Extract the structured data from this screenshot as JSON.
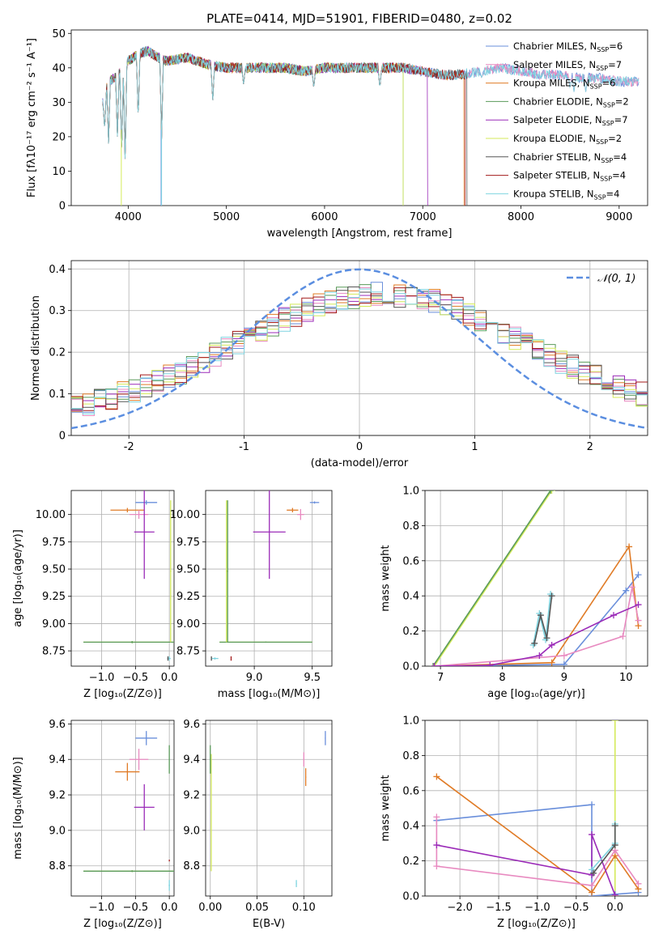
{
  "figure": {
    "title": "PLATE=0414, MJD=51901, FIBERID=0480, z=0.02"
  },
  "colors": {
    "Chabrier MILES": "#6a8fdb",
    "Salpeter MILES": "#e88ac0",
    "Kroupa MILES": "#e07b26",
    "Chabrier ELODIE": "#5a9a5a",
    "Salpeter ELODIE": "#9b2bb8",
    "Kroupa ELODIE": "#d4ea5a",
    "Chabrier STELIB": "#555555",
    "Salpeter STELIB": "#a31a1a",
    "Kroupa STELIB": "#7fd4e0",
    "gauss": "#5b8ee0"
  },
  "chart_data": [
    {
      "id": "spectrum",
      "type": "line",
      "title": "PLATE=0414, MJD=51901, FIBERID=0480, z=0.02",
      "xlabel": "wavelength [Angstrom, rest frame]",
      "ylabel": "Flux [fλ10⁻¹⁷ erg cm⁻² s⁻¹ A⁻¹]",
      "xlim": [
        3420,
        9290
      ],
      "ylim": [
        0,
        51
      ],
      "xticks": [
        4000,
        5000,
        6000,
        7000,
        8000,
        9000
      ],
      "yticks": [
        0,
        10,
        20,
        30,
        40,
        50
      ],
      "legend_position": "top-right",
      "legend": [
        {
          "label": "Chabrier MILES, N",
          "sub": "SSP",
          "suffix": "=6",
          "model": "Chabrier MILES"
        },
        {
          "label": "Salpeter MILES, N",
          "sub": "SSP",
          "suffix": "=7",
          "model": "Salpeter MILES"
        },
        {
          "label": "Kroupa MILES, N",
          "sub": "SSP",
          "suffix": "=6",
          "model": "Kroupa MILES"
        },
        {
          "label": "Chabrier ELODIE, N",
          "sub": "SSP",
          "suffix": "=2",
          "model": "Chabrier ELODIE"
        },
        {
          "label": "Salpeter ELODIE, N",
          "sub": "SSP",
          "suffix": "=7",
          "model": "Salpeter ELODIE"
        },
        {
          "label": "Kroupa ELODIE, N",
          "sub": "SSP",
          "suffix": "=2",
          "model": "Kroupa ELODIE"
        },
        {
          "label": "Chabrier STELIB, N",
          "sub": "SSP",
          "suffix": "=4",
          "model": "Chabrier STELIB"
        },
        {
          "label": "Salpeter STELIB, N",
          "sub": "SSP",
          "suffix": "=4",
          "model": "Salpeter STELIB"
        },
        {
          "label": "Kroupa STELIB, N",
          "sub": "SSP",
          "suffix": "=4",
          "model": "Kroupa STELIB"
        }
      ],
      "continuum": {
        "x": [
          3740,
          3800,
          3900,
          4000,
          4100,
          4200,
          4300,
          4400,
          4600,
          4800,
          5000,
          5200,
          5400,
          5600,
          5800,
          6000,
          6200,
          6400,
          6600,
          6800,
          7000,
          7200,
          7400,
          7600,
          7800,
          8000,
          8200,
          8400,
          8600,
          8800,
          9000,
          9200
        ],
        "y": [
          30,
          36,
          38,
          42,
          44,
          45,
          43,
          42,
          43,
          41,
          40,
          40,
          40,
          40,
          39,
          40,
          40,
          40,
          40,
          40,
          39,
          38,
          38,
          39,
          40,
          39,
          38,
          38,
          37,
          37,
          36,
          36
        ]
      },
      "dips": [
        {
          "x": 3760,
          "y": 22
        },
        {
          "x": 3800,
          "y": 18
        },
        {
          "x": 3890,
          "y": 20
        },
        {
          "x": 3934,
          "y": 14
        },
        {
          "x": 3969,
          "y": 12
        },
        {
          "x": 4102,
          "y": 25
        },
        {
          "x": 4340,
          "y": 19
        },
        {
          "x": 4861,
          "y": 30
        },
        {
          "x": 5175,
          "y": 35
        },
        {
          "x": 5890,
          "y": 34
        },
        {
          "x": 6563,
          "y": 34
        },
        {
          "x": 7600,
          "y": 37
        },
        {
          "x": 8500,
          "y": 34
        },
        {
          "x": 8540,
          "y": 33
        },
        {
          "x": 8660,
          "y": 33
        }
      ],
      "model_ends": [
        {
          "model": "Kroupa ELODIE",
          "x_end": 6800
        },
        {
          "model": "Salpeter STELIB",
          "x_end": 7430
        },
        {
          "model": "Kroupa MILES",
          "x_end": 7420
        },
        {
          "model": "Salpeter ELODIE",
          "x_end": 7050
        },
        {
          "model": "Chabrier ELODIE",
          "x_end": 6800
        },
        {
          "model": "Chabrier STELIB",
          "x_end": 7450
        }
      ]
    },
    {
      "id": "residuals",
      "type": "line",
      "xlabel": "(data-model)/error",
      "ylabel": "Normed distribution",
      "xlim": [
        -2.5,
        2.5
      ],
      "ylim": [
        0,
        0.42
      ],
      "xticks": [
        -2,
        -1,
        0,
        1,
        2
      ],
      "yticks": [
        0.0,
        0.1,
        0.2,
        0.3,
        0.4
      ],
      "legend_position": "top-right",
      "gauss_label": "𝒩(0, 1)",
      "bin_width": 0.1
    },
    {
      "id": "age-vs-Z",
      "type": "scatter",
      "xlabel": "Z [log₁₀(Z/Z⊙)]",
      "ylabel": "age  [log₁₀(age/yr)]",
      "xlim": [
        -1.45,
        0.07
      ],
      "ylim": [
        8.61,
        10.22
      ],
      "xticks": [
        -1.0,
        -0.5,
        0.0
      ],
      "xticklabels": [
        "−1.0",
        "−0.5",
        "0.0"
      ],
      "yticks": [
        8.75,
        9.0,
        9.25,
        9.5,
        9.75,
        10.0
      ],
      "yticklabels": [
        "8.75",
        "9.00",
        "9.25",
        "9.50",
        "9.75",
        "10.00"
      ],
      "points": [
        {
          "model": "Chabrier MILES",
          "x": -0.34,
          "xerr": 0.16,
          "y": 10.11,
          "yerr": 0.02
        },
        {
          "model": "Kroupa MILES",
          "x": -0.62,
          "xerr": 0.25,
          "y": 10.04,
          "yerr": 0.02
        },
        {
          "model": "Salpeter MILES",
          "x": -0.45,
          "xerr": 0.14,
          "y": 10.0,
          "yerr": 0.04
        },
        {
          "model": "Salpeter ELODIE",
          "x": -0.37,
          "xerr": 0.15,
          "y": 9.84,
          "yerr": 0.43
        },
        {
          "model": "Kroupa ELODIE",
          "x": -0.55,
          "xerr": 0.72,
          "y": 8.83,
          "yerr": 0.01
        },
        {
          "model": "Chabrier ELODIE",
          "x": -0.55,
          "xerr": 0.72,
          "y": 8.83,
          "yerr": 0.01
        },
        {
          "model": "Kroupa ELODIE",
          "x": 0.02,
          "xerr": 0.01,
          "y": 9.48,
          "yerr": 0.65
        },
        {
          "model": "Kroupa STELIB",
          "x": 0.0,
          "xerr": 0.02,
          "y": 8.68,
          "yerr": 0.02
        },
        {
          "model": "Chabrier STELIB",
          "x": -0.02,
          "xerr": 0.01,
          "y": 8.68,
          "yerr": 0.02
        }
      ]
    },
    {
      "id": "age-vs-mass",
      "type": "scatter",
      "xlabel": "mass [log₁₀(M/M⊙)]",
      "ylabel": "",
      "xlim": [
        8.58,
        9.67
      ],
      "ylim": [
        8.61,
        10.22
      ],
      "xticks": [
        9.0,
        9.5
      ],
      "xticklabels": [
        "9.0",
        "9.5"
      ],
      "yticks": [
        8.75,
        9.0,
        9.25,
        9.5,
        9.75,
        10.0
      ],
      "yticklabels": [
        "8.75",
        "9.00",
        "9.25",
        "9.50",
        "9.75",
        "10.00"
      ],
      "points": [
        {
          "model": "Chabrier MILES",
          "x": 9.52,
          "xerr": 0.04,
          "y": 10.11,
          "yerr": 0.01
        },
        {
          "model": "Kroupa MILES",
          "x": 9.33,
          "xerr": 0.05,
          "y": 10.04,
          "yerr": 0.02
        },
        {
          "model": "Salpeter MILES",
          "x": 9.4,
          "xerr": 0.03,
          "y": 10.0,
          "yerr": 0.05
        },
        {
          "model": "Salpeter ELODIE",
          "x": 9.13,
          "xerr": 0.14,
          "y": 9.84,
          "yerr": 0.43
        },
        {
          "model": "Kroupa ELODIE",
          "x": 9.1,
          "xerr": 0.4,
          "y": 8.83,
          "yerr": 0.005
        },
        {
          "model": "Chabrier ELODIE",
          "x": 9.1,
          "xerr": 0.4,
          "y": 8.83,
          "yerr": 0.005
        },
        {
          "model": "Kroupa ELODIE",
          "x": 8.76,
          "xerr": 0.005,
          "y": 9.48,
          "yerr": 0.65
        },
        {
          "model": "Chabrier ELODIE",
          "x": 8.77,
          "xerr": 0.005,
          "y": 9.48,
          "yerr": 0.65
        },
        {
          "model": "Kroupa STELIB",
          "x": 8.66,
          "xerr": 0.03,
          "y": 8.68,
          "yerr": 0.01
        },
        {
          "model": "Salpeter STELIB",
          "x": 8.8,
          "xerr": 0.003,
          "y": 8.68,
          "yerr": 0.02
        },
        {
          "model": "Chabrier STELIB",
          "x": 8.63,
          "xerr": 0.003,
          "y": 8.68,
          "yerr": 0.02
        }
      ]
    },
    {
      "id": "weight-vs-age",
      "type": "line",
      "xlabel": "age  [log₁₀(age/yr)]",
      "ylabel": "mass weight",
      "xlim": [
        6.75,
        10.35
      ],
      "ylim": [
        0,
        1.0
      ],
      "xticks": [
        7,
        8,
        9,
        10
      ],
      "xticklabels": [
        "7",
        "8",
        "9",
        "10"
      ],
      "yticks": [
        0,
        0.2,
        0.4,
        0.6,
        0.8,
        1.0
      ],
      "yticklabels": [
        "0.0",
        "0.2",
        "0.4",
        "0.6",
        "0.8",
        "1.0"
      ],
      "series": [
        {
          "model": "Kroupa ELODIE",
          "x": [
            6.9,
            8.8
          ],
          "y": [
            0.0,
            1.0
          ]
        },
        {
          "model": "Chabrier ELODIE",
          "x": [
            6.88,
            8.78
          ],
          "y": [
            0.0,
            1.0
          ]
        },
        {
          "model": "Chabrier MILES",
          "x": [
            6.9,
            9.0,
            10.0,
            10.2
          ],
          "y": [
            0.0,
            0.01,
            0.43,
            0.52
          ]
        },
        {
          "model": "Kroupa MILES",
          "x": [
            6.9,
            8.8,
            10.05,
            10.2
          ],
          "y": [
            0.0,
            0.02,
            0.68,
            0.23
          ]
        },
        {
          "model": "Salpeter MILES",
          "x": [
            6.9,
            9.0,
            9.95,
            10.1,
            10.2
          ],
          "y": [
            0.0,
            0.06,
            0.17,
            0.45,
            0.26
          ]
        },
        {
          "model": "Salpeter ELODIE",
          "x": [
            6.9,
            7.8,
            8.6,
            8.8,
            9.8,
            10.2
          ],
          "y": [
            0.0,
            0.005,
            0.06,
            0.12,
            0.29,
            0.35
          ]
        },
        {
          "model": "Kroupa STELIB",
          "x": [
            8.5,
            8.6,
            8.7,
            8.78
          ],
          "y": [
            0.12,
            0.3,
            0.15,
            0.41
          ]
        },
        {
          "model": "Chabrier STELIB",
          "x": [
            8.52,
            8.62,
            8.72,
            8.8
          ],
          "y": [
            0.13,
            0.29,
            0.16,
            0.4
          ]
        }
      ]
    },
    {
      "id": "mass-vs-Z",
      "type": "scatter",
      "xlabel": "Z [log₁₀(Z/Z⊙)]",
      "ylabel": "mass [log₁₀(M/M⊙)]",
      "xlim": [
        -1.45,
        0.07
      ],
      "ylim": [
        8.63,
        9.62
      ],
      "xticks": [
        -1.0,
        -0.5,
        0.0
      ],
      "xticklabels": [
        "−1.0",
        "−0.5",
        "0.0"
      ],
      "yticks": [
        8.8,
        9.0,
        9.2,
        9.4,
        9.6
      ],
      "yticklabels": [
        "8.8",
        "9.0",
        "9.2",
        "9.4",
        "9.6"
      ],
      "points": [
        {
          "model": "Chabrier MILES",
          "x": -0.34,
          "xerr": 0.16,
          "y": 9.52,
          "yerr": 0.04
        },
        {
          "model": "Salpeter MILES",
          "x": -0.45,
          "xerr": 0.14,
          "y": 9.4,
          "yerr": 0.06
        },
        {
          "model": "Kroupa MILES",
          "x": -0.62,
          "xerr": 0.18,
          "y": 9.33,
          "yerr": 0.05
        },
        {
          "model": "Salpeter ELODIE",
          "x": -0.37,
          "xerr": 0.15,
          "y": 9.13,
          "yerr": 0.13
        },
        {
          "model": "Kroupa ELODIE",
          "x": -0.55,
          "xerr": 0.72,
          "y": 8.77,
          "yerr": 0.005
        },
        {
          "model": "Chabrier ELODIE",
          "x": -0.55,
          "xerr": 0.72,
          "y": 8.77,
          "yerr": 0.005
        },
        {
          "model": "Chabrier ELODIE",
          "x": 0.0,
          "xerr": 0.005,
          "y": 9.4,
          "yerr": 0.08
        },
        {
          "model": "Kroupa STELIB",
          "x": 0.0,
          "xerr": 0.01,
          "y": 8.69,
          "yerr": 0.03
        },
        {
          "model": "Salpeter STELIB",
          "x": 0.0,
          "xerr": 0.005,
          "y": 8.83,
          "yerr": 0.005
        }
      ]
    },
    {
      "id": "mass-vs-EBV",
      "type": "scatter",
      "xlabel": "E(B-V)",
      "ylabel": "",
      "xlim": [
        -0.005,
        0.13
      ],
      "ylim": [
        8.63,
        9.62
      ],
      "xticks": [
        0.0,
        0.05,
        0.1
      ],
      "xticklabels": [
        "0.00",
        "0.05",
        "0.10"
      ],
      "yticks": [
        8.8,
        9.0,
        9.2,
        9.4,
        9.6
      ],
      "yticklabels": [
        "8.8",
        "9.0",
        "9.2",
        "9.4",
        "9.6"
      ],
      "points": [
        {
          "model": "Chabrier MILES",
          "x": 0.123,
          "xerr": 0.0005,
          "y": 9.52,
          "yerr": 0.04
        },
        {
          "model": "Salpeter MILES",
          "x": 0.1,
          "xerr": 0.0005,
          "y": 9.4,
          "yerr": 0.04
        },
        {
          "model": "Kroupa MILES",
          "x": 0.102,
          "xerr": 0.0005,
          "y": 9.3,
          "yerr": 0.05
        },
        {
          "model": "Kroupa ELODIE",
          "x": 0.001,
          "xerr": 0.0005,
          "y": 9.1,
          "yerr": 0.33
        },
        {
          "model": "Chabrier ELODIE",
          "x": 0.0,
          "xerr": 0.0005,
          "y": 9.4,
          "yerr": 0.08
        },
        {
          "model": "Kroupa STELIB",
          "x": 0.092,
          "xerr": 0.0005,
          "y": 8.7,
          "yerr": 0.02
        }
      ]
    },
    {
      "id": "weight-vs-Z",
      "type": "line",
      "xlabel": "Z [log₁₀(Z/Z⊙)]",
      "ylabel": "mass weight",
      "xlim": [
        -2.45,
        0.42
      ],
      "ylim": [
        0,
        1.0
      ],
      "xticks": [
        -2.0,
        -1.5,
        -1.0,
        -0.5,
        0.0
      ],
      "xticklabels": [
        "−2.0",
        "−1.5",
        "−1.0",
        "−0.5",
        "0.0"
      ],
      "yticks": [
        0,
        0.2,
        0.4,
        0.6,
        0.8,
        1.0
      ],
      "yticklabels": [
        "0.0",
        "0.2",
        "0.4",
        "0.6",
        "0.8",
        "1.0"
      ],
      "series": [
        {
          "model": "Kroupa ELODIE",
          "x": [
            0.0,
            0.0
          ],
          "y": [
            0.0,
            1.0
          ]
        },
        {
          "model": "Chabrier MILES",
          "x": [
            -2.3,
            -0.3,
            -0.3,
            0.0,
            0.3
          ],
          "y": [
            0.43,
            0.52,
            0.0,
            0.01,
            0.02
          ]
        },
        {
          "model": "Kroupa MILES",
          "x": [
            -2.3,
            -0.3,
            0.0,
            0.3
          ],
          "y": [
            0.68,
            0.02,
            0.23,
            0.04
          ]
        },
        {
          "model": "Salpeter MILES",
          "x": [
            -2.3,
            -2.3,
            -0.3,
            0.0,
            0.3
          ],
          "y": [
            0.45,
            0.17,
            0.06,
            0.26,
            0.07
          ]
        },
        {
          "model": "Salpeter ELODIE",
          "x": [
            -2.3,
            -0.3,
            -0.3,
            0.0
          ],
          "y": [
            0.29,
            0.12,
            0.35,
            0.005
          ]
        },
        {
          "model": "Kroupa STELIB",
          "x": [
            -0.3,
            0.0,
            0.0
          ],
          "y": [
            0.15,
            0.3,
            0.41
          ]
        },
        {
          "model": "Chabrier STELIB",
          "x": [
            -0.28,
            0.0,
            0.0
          ],
          "y": [
            0.13,
            0.29,
            0.4
          ]
        }
      ]
    }
  ]
}
